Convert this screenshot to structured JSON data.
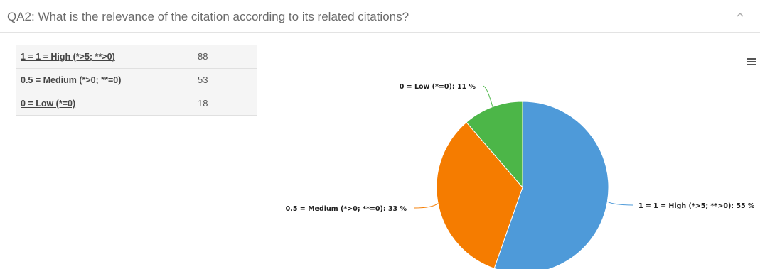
{
  "question": {
    "title": "QA2: What is the relevance of the citation according to its related citations?"
  },
  "icons": {
    "collapse": "chevron-up-icon",
    "menu": "hamburger-menu-icon"
  },
  "table": {
    "rows": [
      {
        "label": "1 = 1 = High (*>5; **>0)",
        "count": "88"
      },
      {
        "label": "0.5 = Medium (*>0; **=0)",
        "count": "53"
      },
      {
        "label": "0 = Low (*=0)",
        "count": "18"
      }
    ]
  },
  "chart_data": {
    "type": "pie",
    "categories": [
      "1 = 1 = High (*>5; **>0)",
      "0.5 = Medium (*>0; **=0)",
      "0 = Low (*=0)"
    ],
    "values": [
      88,
      53,
      18
    ],
    "data_labels": [
      "1 = 1 = High (*>5; **>0): 55 %",
      "0.5 = Medium (*>0; **=0): 33 %",
      "0 = Low (*=0): 11 %"
    ],
    "colors": [
      "#4e9ad9",
      "#f57c00",
      "#4cb648"
    ]
  }
}
